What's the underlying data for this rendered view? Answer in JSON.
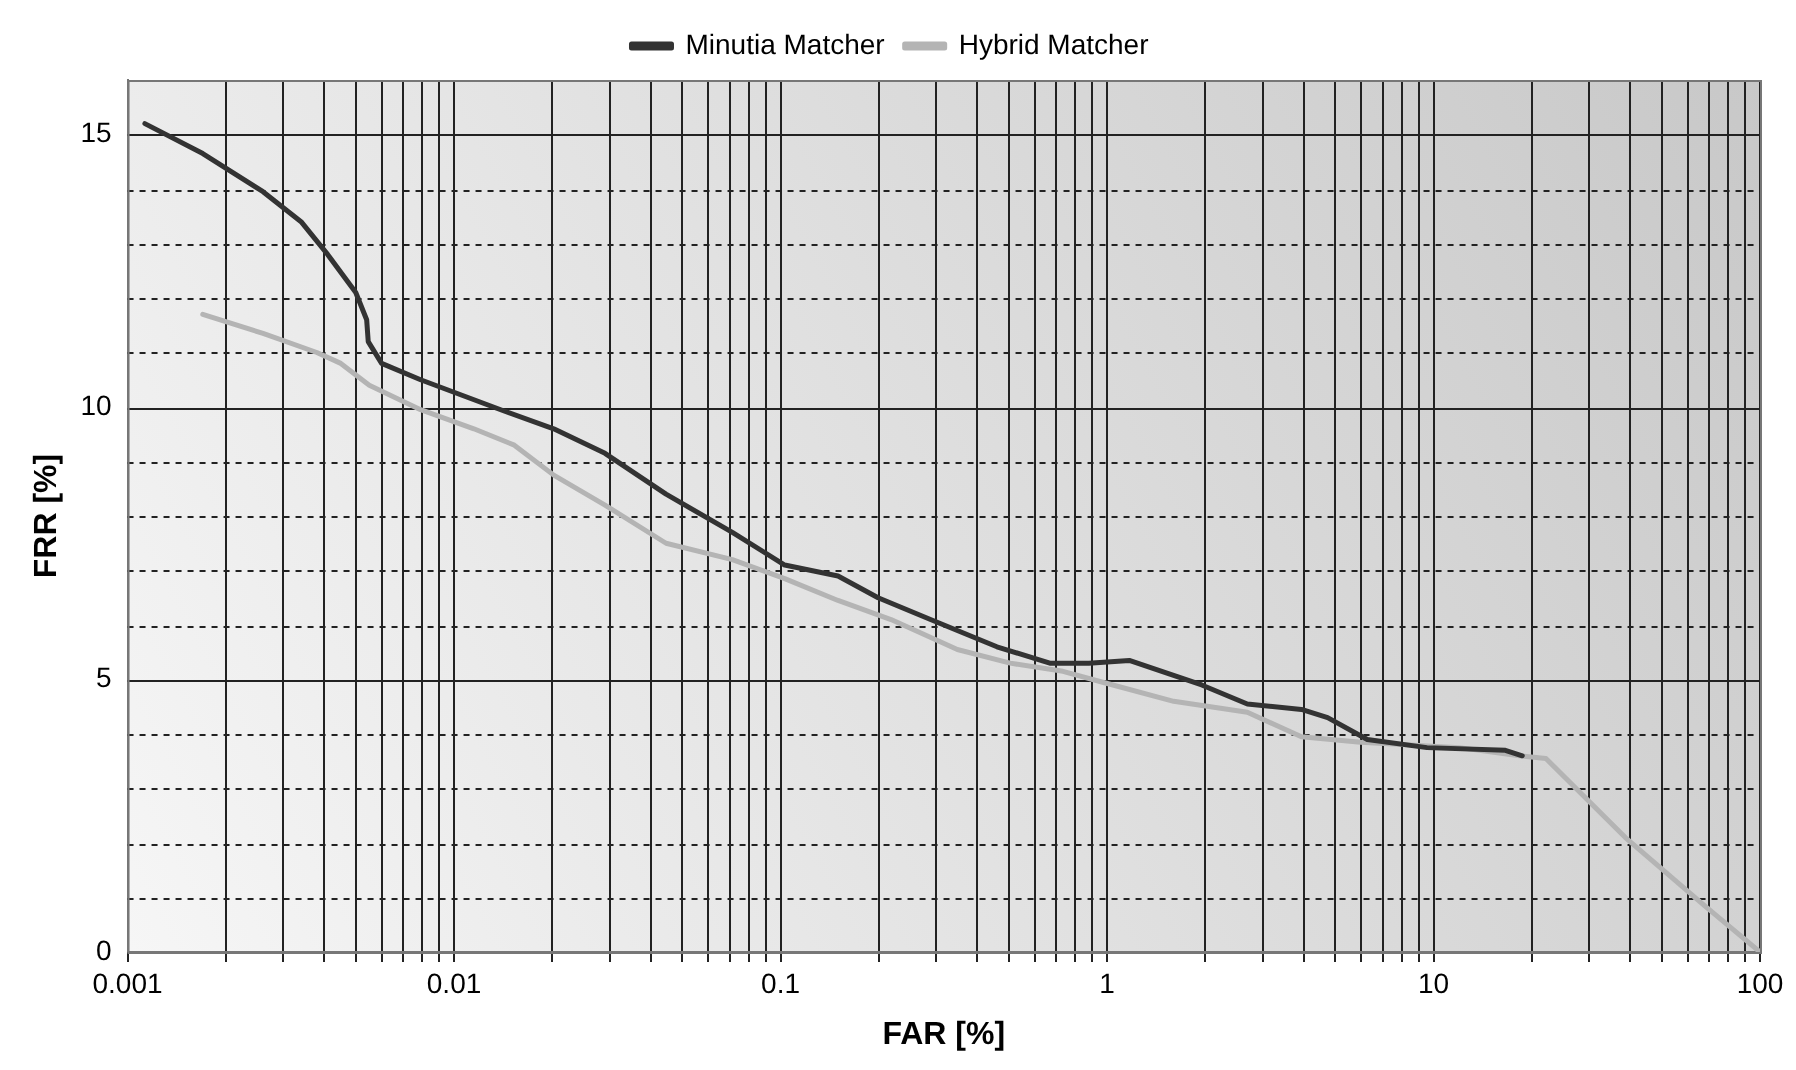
{
  "chart_data": {
    "type": "line",
    "xlabel": "FAR [%]",
    "ylabel": "FRR [%]",
    "log": "x",
    "grid": true,
    "legend": "top",
    "marker": "none",
    "line_style": "solid",
    "xlim": [
      0.001,
      100
    ],
    "xticks": [
      0.001,
      {
        "value": 0.002,
        "label": null
      },
      {
        "value": 0.003,
        "label": null
      },
      {
        "value": 0.004,
        "label": null
      },
      {
        "value": 0.005,
        "label": null
      },
      {
        "value": 0.006,
        "label": null
      },
      {
        "value": 0.007,
        "label": null
      },
      {
        "value": 0.008,
        "label": null
      },
      {
        "value": 0.009,
        "label": null
      },
      0.01,
      {
        "value": 0.02,
        "label": null
      },
      {
        "value": 0.03,
        "label": null
      },
      {
        "value": 0.04,
        "label": null
      },
      {
        "value": 0.05,
        "label": null
      },
      {
        "value": 0.06,
        "label": null
      },
      {
        "value": 0.07,
        "label": null
      },
      {
        "value": 0.08,
        "label": null
      },
      {
        "value": 0.09,
        "label": null
      },
      0.1,
      {
        "value": 0.2,
        "label": null
      },
      {
        "value": 0.3,
        "label": null
      },
      {
        "value": 0.4,
        "label": null
      },
      {
        "value": 0.5,
        "label": null
      },
      {
        "value": 0.6,
        "label": null
      },
      {
        "value": 0.7,
        "label": null
      },
      {
        "value": 0.8,
        "label": null
      },
      {
        "value": 0.9,
        "label": null
      },
      1,
      {
        "value": 2,
        "label": null
      },
      {
        "value": 3,
        "label": null
      },
      {
        "value": 4,
        "label": null
      },
      {
        "value": 5,
        "label": null
      },
      {
        "value": 6,
        "label": null
      },
      {
        "value": 7,
        "label": null
      },
      {
        "value": 8,
        "label": null
      },
      {
        "value": 9,
        "label": null
      },
      10,
      {
        "value": 20,
        "label": null
      },
      {
        "value": 30,
        "label": null
      },
      {
        "value": 40,
        "label": null
      },
      {
        "value": 50,
        "label": null
      },
      {
        "value": 60,
        "label": null
      },
      {
        "value": 70,
        "label": null
      },
      {
        "value": 80,
        "label": null
      },
      {
        "value": 90,
        "label": null
      },
      100
    ],
    "ylim": [
      0,
      16
    ],
    "yticks": [
      0,
      {
        "value": 1,
        "label": null
      },
      {
        "value": 2,
        "label": null
      },
      {
        "value": 3,
        "label": null
      },
      {
        "value": 4,
        "label": null
      },
      5,
      {
        "value": 6,
        "label": null
      },
      {
        "value": 7,
        "label": null
      },
      {
        "value": 8,
        "label": null
      },
      {
        "value": 9,
        "label": null
      },
      10,
      {
        "value": 11,
        "label": null
      },
      {
        "value": 12,
        "label": null
      },
      {
        "value": 13,
        "label": null
      },
      {
        "value": 14,
        "label": null
      },
      15
    ],
    "series": [
      {
        "name": "Minutia Matcher",
        "color": "#333333",
        "x": [
          0.00113,
          0.0017,
          0.0026,
          0.0034,
          0.0041,
          0.005,
          0.0054,
          0.00546,
          0.006,
          0.0079,
          0.0139,
          0.0202,
          0.029,
          0.0446,
          0.0712,
          0.103,
          0.15,
          0.199,
          0.288,
          0.46,
          0.668,
          0.88,
          1.17,
          1.95,
          2.69,
          3.94,
          4.74,
          6.27,
          9.55,
          16.6,
          18.7
        ],
        "values": [
          15.2,
          14.65,
          13.95,
          13.4,
          12.8,
          12.1,
          11.6,
          11.2,
          10.8,
          10.5,
          9.95,
          9.6,
          9.15,
          8.4,
          7.7,
          7.1,
          6.9,
          6.5,
          6.1,
          5.6,
          5.3,
          5.3,
          5.35,
          4.9,
          4.55,
          4.45,
          4.3,
          3.9,
          3.75,
          3.7,
          3.6
        ]
      },
      {
        "name": "Hybrid Matcher",
        "color": "#b4b4b4",
        "x": [
          0.0017,
          0.0026,
          0.0038,
          0.0045,
          0.0055,
          0.0079,
          0.0115,
          0.0153,
          0.0202,
          0.029,
          0.0446,
          0.0712,
          0.103,
          0.15,
          0.218,
          0.348,
          0.505,
          0.733,
          0.97,
          1.6,
          2.69,
          3.94,
          5.98,
          12,
          18.3,
          22.1,
          38.7,
          67.6,
          100
        ],
        "values": [
          11.7,
          11.35,
          11,
          10.8,
          10.4,
          9.95,
          9.6,
          9.3,
          8.75,
          8.2,
          7.5,
          7.2,
          6.85,
          6.45,
          6.1,
          5.55,
          5.3,
          5.15,
          4.95,
          4.6,
          4.4,
          3.95,
          3.85,
          3.75,
          3.6,
          3.55,
          2.1,
          0.85,
          0
        ]
      }
    ]
  }
}
